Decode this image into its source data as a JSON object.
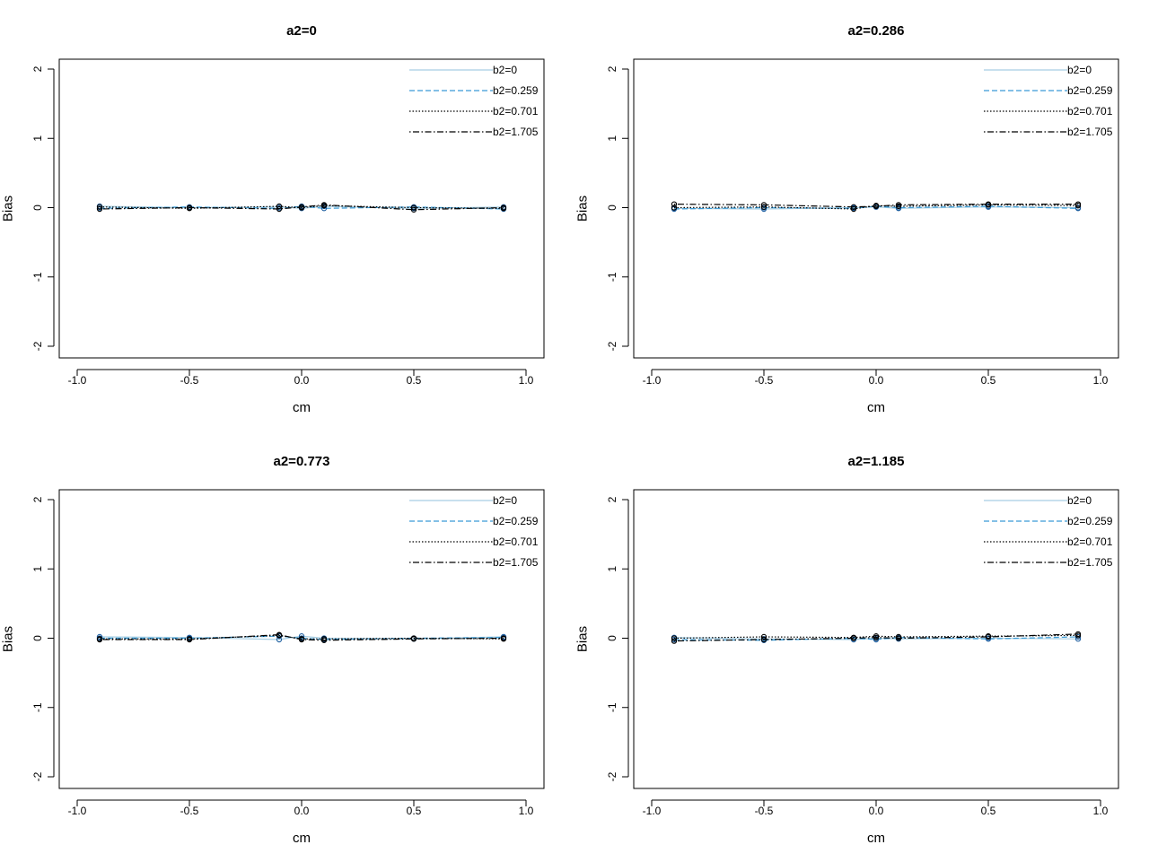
{
  "figure": {
    "background": "#ffffff"
  },
  "legend": {
    "placement": "top-right",
    "entries": [
      {
        "label": "b2=0",
        "color": "#a6cee3",
        "dash": "solid"
      },
      {
        "label": "b2=0.259",
        "color": "#3a9bd6",
        "dash": "dashed"
      },
      {
        "label": "b2=0.701",
        "color": "#000000",
        "dash": "dotted"
      },
      {
        "label": "b2=1.705",
        "color": "#000000",
        "dash": "dotdash"
      }
    ]
  },
  "chart_data": [
    {
      "type": "line",
      "title": "a2=0",
      "xlabel": "cm",
      "ylabel": "Bias",
      "xlim": [
        -1.0,
        1.0
      ],
      "ylim": [
        -2,
        2
      ],
      "xticks": [
        "-1.0",
        "-0.5",
        "0.0",
        "0.5",
        "1.0"
      ],
      "yticks": [
        "-2",
        "-1",
        "0",
        "1",
        "2"
      ],
      "grid": false,
      "x": [
        -0.9,
        -0.5,
        -0.1,
        0.0,
        0.1,
        0.5,
        0.9
      ],
      "series": [
        {
          "name": "b2=0",
          "values": [
            0.02,
            0.0,
            0.01,
            -0.01,
            0.02,
            -0.01,
            0.01
          ]
        },
        {
          "name": "b2=0.259",
          "values": [
            -0.01,
            0.01,
            -0.01,
            0.02,
            -0.01,
            0.01,
            -0.02
          ]
        },
        {
          "name": "b2=0.701",
          "values": [
            0.01,
            -0.01,
            0.02,
            0.0,
            0.03,
            0.0,
            -0.01
          ]
        },
        {
          "name": "b2=1.705",
          "values": [
            -0.02,
            0.0,
            -0.02,
            0.01,
            0.04,
            -0.03,
            0.0
          ]
        }
      ]
    },
    {
      "type": "line",
      "title": "a2=0.286",
      "xlabel": "cm",
      "ylabel": "Bias",
      "xlim": [
        -1.0,
        1.0
      ],
      "ylim": [
        -2,
        2
      ],
      "xticks": [
        "-1.0",
        "-0.5",
        "0.0",
        "0.5",
        "1.0"
      ],
      "yticks": [
        "-2",
        "-1",
        "0",
        "1",
        "2"
      ],
      "grid": false,
      "x": [
        -0.9,
        -0.5,
        -0.1,
        0.0,
        0.1,
        0.5,
        0.9
      ],
      "series": [
        {
          "name": "b2=0",
          "values": [
            -0.01,
            -0.02,
            0.0,
            0.01,
            -0.01,
            0.01,
            0.0
          ]
        },
        {
          "name": "b2=0.259",
          "values": [
            -0.02,
            0.0,
            -0.01,
            0.02,
            0.0,
            0.02,
            -0.01
          ]
        },
        {
          "name": "b2=0.701",
          "values": [
            0.0,
            0.01,
            -0.02,
            0.03,
            0.02,
            0.04,
            0.03
          ]
        },
        {
          "name": "b2=1.705",
          "values": [
            0.05,
            0.04,
            0.01,
            0.02,
            0.04,
            0.05,
            0.05
          ]
        }
      ]
    },
    {
      "type": "line",
      "title": "a2=0.773",
      "xlabel": "cm",
      "ylabel": "Bias",
      "xlim": [
        -1.0,
        1.0
      ],
      "ylim": [
        -2,
        2
      ],
      "xticks": [
        "-1.0",
        "-0.5",
        "0.0",
        "0.5",
        "1.0"
      ],
      "yticks": [
        "-2",
        "-1",
        "0",
        "1",
        "2"
      ],
      "grid": false,
      "x": [
        -0.9,
        -0.5,
        -0.1,
        0.0,
        0.1,
        0.5,
        0.9
      ],
      "series": [
        {
          "name": "b2=0",
          "values": [
            0.02,
            0.01,
            -0.02,
            0.03,
            0.0,
            -0.01,
            0.02
          ]
        },
        {
          "name": "b2=0.259",
          "values": [
            0.0,
            0.0,
            0.03,
            0.0,
            -0.02,
            0.0,
            0.01
          ]
        },
        {
          "name": "b2=0.701",
          "values": [
            -0.01,
            -0.01,
            0.04,
            -0.01,
            -0.01,
            0.0,
            -0.01
          ]
        },
        {
          "name": "b2=1.705",
          "values": [
            -0.02,
            -0.02,
            0.05,
            -0.02,
            -0.03,
            -0.01,
            0.0
          ]
        }
      ]
    },
    {
      "type": "line",
      "title": "a2=1.185",
      "xlabel": "cm",
      "ylabel": "Bias",
      "xlim": [
        -1.0,
        1.0
      ],
      "ylim": [
        -2,
        2
      ],
      "xticks": [
        "-1.0",
        "-0.5",
        "0.0",
        "0.5",
        "1.0"
      ],
      "yticks": [
        "-2",
        "-1",
        "0",
        "1",
        "2"
      ],
      "grid": false,
      "x": [
        -0.9,
        -0.5,
        -0.1,
        0.0,
        0.1,
        0.5,
        0.9
      ],
      "series": [
        {
          "name": "b2=0",
          "values": [
            0.01,
            -0.01,
            -0.02,
            0.0,
            -0.01,
            0.0,
            -0.01
          ]
        },
        {
          "name": "b2=0.259",
          "values": [
            -0.02,
            -0.03,
            0.0,
            -0.02,
            0.01,
            -0.01,
            0.02
          ]
        },
        {
          "name": "b2=0.701",
          "values": [
            0.0,
            0.02,
            0.01,
            0.03,
            0.02,
            0.03,
            0.04
          ]
        },
        {
          "name": "b2=1.705",
          "values": [
            -0.04,
            -0.02,
            0.0,
            0.01,
            0.0,
            0.02,
            0.06
          ]
        }
      ]
    }
  ]
}
